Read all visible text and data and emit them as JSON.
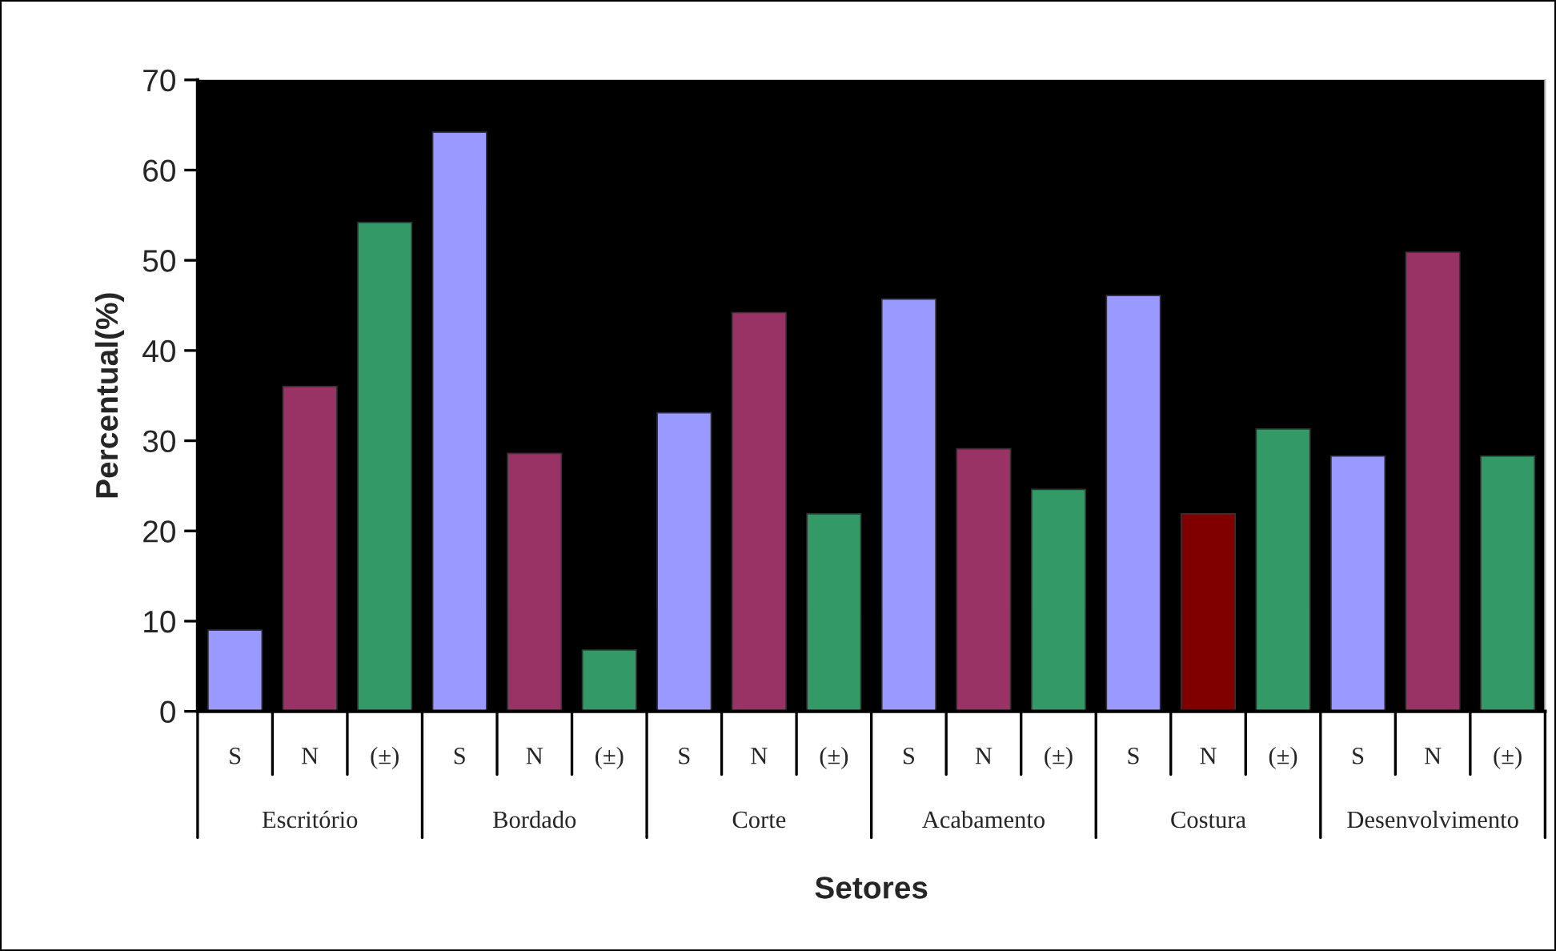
{
  "chart_data": {
    "type": "bar",
    "xlabel": "Setores",
    "ylabel": "Percentual(%)",
    "categories": [
      "S",
      "N",
      "(±)",
      "S",
      "N",
      "(±)",
      "S",
      "N",
      "(±)",
      "S",
      "N",
      "(±)",
      "S",
      "N",
      "(±)",
      "S",
      "N",
      "(±)"
    ],
    "values": [
      9,
      36,
      54.2,
      64.2,
      28.6,
      6.8,
      33.1,
      44.2,
      21.9,
      45.7,
      29.1,
      24.6,
      46.1,
      21.9,
      31.3,
      28.3,
      50.9,
      28.3
    ],
    "colors": [
      "#9999ff",
      "#993366",
      "#339966",
      "#9999ff",
      "#993366",
      "#339966",
      "#9999ff",
      "#993366",
      "#339966",
      "#9999ff",
      "#993366",
      "#339966",
      "#9999ff",
      "#800000",
      "#339966",
      "#9999ff",
      "#993366",
      "#339966"
    ],
    "annotations": [
      "Escritório",
      "Bordado",
      "Corte",
      "Acabamento",
      "Costura",
      "Desenvolvimento"
    ],
    "ylim": [
      0,
      70
    ],
    "yticks": [
      0,
      10,
      20,
      30,
      40,
      50,
      60,
      70
    ],
    "grid": false,
    "legend": false
  }
}
